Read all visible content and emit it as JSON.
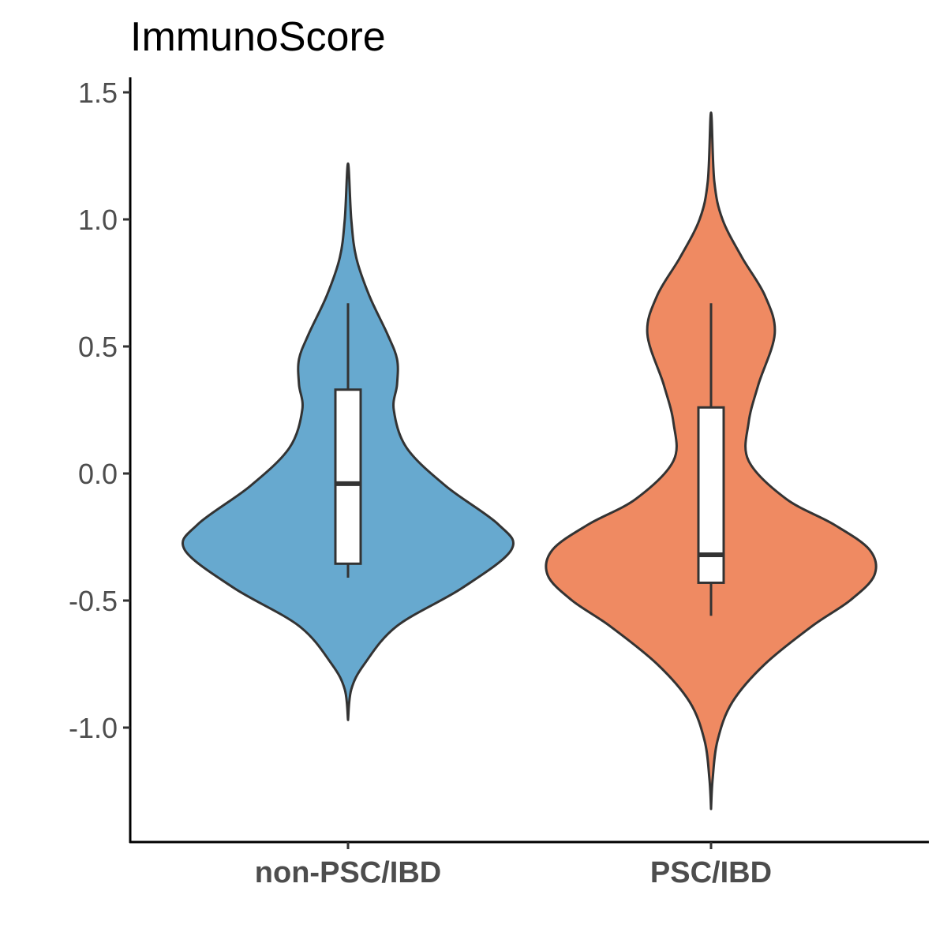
{
  "chart_data": {
    "type": "violin",
    "title": "ImmunoScore",
    "xlabel": "",
    "ylabel": "",
    "categories": [
      "non-PSC/IBD",
      "PSC/IBD"
    ],
    "ylim": [
      -1.4,
      1.55
    ],
    "yticks": [
      {
        "value": 1.5,
        "label": "1.5"
      },
      {
        "value": 1.0,
        "label": "1.0"
      },
      {
        "value": 0.5,
        "label": "0.5"
      },
      {
        "value": 0.0,
        "label": "0.0"
      },
      {
        "value": -0.5,
        "label": "-0.5"
      },
      {
        "value": -1.0,
        "label": "-1.0"
      }
    ],
    "grid": false,
    "legend": "none",
    "series": [
      {
        "category": "non-PSC/IBD",
        "color": "#67a9cf",
        "violin_range": [
          -0.97,
          1.22
        ],
        "density": [
          {
            "y": -0.97,
            "w": 0.0
          },
          {
            "y": -0.85,
            "w": 0.02
          },
          {
            "y": -0.75,
            "w": 0.1
          },
          {
            "y": -0.6,
            "w": 0.3
          },
          {
            "y": -0.45,
            "w": 0.7
          },
          {
            "y": -0.3,
            "w": 1.0
          },
          {
            "y": -0.2,
            "w": 0.92
          },
          {
            "y": -0.05,
            "w": 0.6
          },
          {
            "y": 0.1,
            "w": 0.36
          },
          {
            "y": 0.25,
            "w": 0.28
          },
          {
            "y": 0.35,
            "w": 0.3
          },
          {
            "y": 0.45,
            "w": 0.3
          },
          {
            "y": 0.55,
            "w": 0.24
          },
          {
            "y": 0.7,
            "w": 0.13
          },
          {
            "y": 0.85,
            "w": 0.05
          },
          {
            "y": 1.0,
            "w": 0.02
          },
          {
            "y": 1.22,
            "w": 0.0
          }
        ],
        "box": {
          "whisker_low": -0.41,
          "q1": -0.355,
          "median": -0.04,
          "q3": 0.33,
          "whisker_high": 0.67
        }
      },
      {
        "category": "PSC/IBD",
        "color": "#ef8a62",
        "violin_range": [
          -1.32,
          1.42
        ],
        "density": [
          {
            "y": -1.32,
            "w": 0.0
          },
          {
            "y": -1.2,
            "w": 0.01
          },
          {
            "y": -1.05,
            "w": 0.04
          },
          {
            "y": -0.9,
            "w": 0.13
          },
          {
            "y": -0.75,
            "w": 0.33
          },
          {
            "y": -0.6,
            "w": 0.62
          },
          {
            "y": -0.5,
            "w": 0.85
          },
          {
            "y": -0.4,
            "w": 1.0
          },
          {
            "y": -0.3,
            "w": 0.97
          },
          {
            "y": -0.2,
            "w": 0.75
          },
          {
            "y": -0.1,
            "w": 0.46
          },
          {
            "y": 0.05,
            "w": 0.23
          },
          {
            "y": 0.2,
            "w": 0.23
          },
          {
            "y": 0.35,
            "w": 0.29
          },
          {
            "y": 0.55,
            "w": 0.39
          },
          {
            "y": 0.7,
            "w": 0.33
          },
          {
            "y": 0.85,
            "w": 0.19
          },
          {
            "y": 1.0,
            "w": 0.07
          },
          {
            "y": 1.15,
            "w": 0.02
          },
          {
            "y": 1.42,
            "w": 0.0
          }
        ],
        "box": {
          "whisker_low": -0.56,
          "q1": -0.43,
          "median": -0.32,
          "q3": 0.26,
          "whisker_high": 0.67
        }
      }
    ]
  }
}
